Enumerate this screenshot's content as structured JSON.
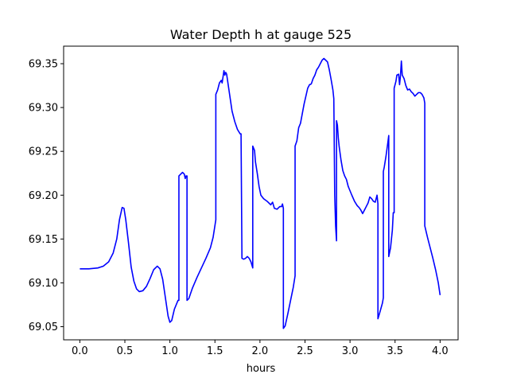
{
  "chart_data": {
    "type": "line",
    "title": "Water Depth h at gauge 525",
    "xlabel": "hours",
    "ylabel": "",
    "xlim": [
      -0.18,
      4.2
    ],
    "ylim": [
      69.035,
      69.37
    ],
    "xticks": [
      0.0,
      0.5,
      1.0,
      1.5,
      2.0,
      2.5,
      3.0,
      3.5,
      4.0
    ],
    "xtick_labels": [
      "0.0",
      "0.5",
      "1.0",
      "1.5",
      "2.0",
      "2.5",
      "3.0",
      "3.5",
      "4.0"
    ],
    "yticks": [
      69.05,
      69.1,
      69.15,
      69.2,
      69.25,
      69.3,
      69.35
    ],
    "ytick_labels": [
      "69.05",
      "69.10",
      "69.15",
      "69.20",
      "69.25",
      "69.30",
      "69.35"
    ],
    "grid": false,
    "legend": "none",
    "series": [
      {
        "color": "#0000ff",
        "points": [
          [
            0.0,
            69.116
          ],
          [
            0.1,
            69.116
          ],
          [
            0.2,
            69.117
          ],
          [
            0.26,
            69.119
          ],
          [
            0.32,
            69.124
          ],
          [
            0.37,
            69.134
          ],
          [
            0.41,
            69.15
          ],
          [
            0.44,
            69.172
          ],
          [
            0.47,
            69.186
          ],
          [
            0.49,
            69.185
          ],
          [
            0.51,
            69.172
          ],
          [
            0.54,
            69.146
          ],
          [
            0.57,
            69.118
          ],
          [
            0.6,
            69.102
          ],
          [
            0.63,
            69.093
          ],
          [
            0.66,
            69.09
          ],
          [
            0.7,
            69.091
          ],
          [
            0.74,
            69.096
          ],
          [
            0.78,
            69.105
          ],
          [
            0.82,
            69.115
          ],
          [
            0.86,
            69.119
          ],
          [
            0.89,
            69.116
          ],
          [
            0.92,
            69.104
          ],
          [
            0.95,
            69.083
          ],
          [
            0.98,
            69.062
          ],
          [
            1.0,
            69.055
          ],
          [
            1.02,
            69.057
          ],
          [
            1.05,
            69.07
          ],
          [
            1.09,
            69.08
          ],
          [
            1.1,
            69.08
          ],
          [
            1.1,
            69.222
          ],
          [
            1.12,
            69.224
          ],
          [
            1.14,
            69.226
          ],
          [
            1.16,
            69.224
          ],
          [
            1.17,
            69.219
          ],
          [
            1.18,
            69.222
          ],
          [
            1.19,
            69.222
          ],
          [
            1.19,
            69.08
          ],
          [
            1.21,
            69.082
          ],
          [
            1.25,
            69.094
          ],
          [
            1.3,
            69.106
          ],
          [
            1.35,
            69.117
          ],
          [
            1.4,
            69.128
          ],
          [
            1.45,
            69.14
          ],
          [
            1.48,
            69.152
          ],
          [
            1.51,
            69.172
          ],
          [
            1.51,
            69.315
          ],
          [
            1.53,
            69.32
          ],
          [
            1.55,
            69.328
          ],
          [
            1.57,
            69.331
          ],
          [
            1.58,
            69.328
          ],
          [
            1.6,
            69.342
          ],
          [
            1.61,
            69.337
          ],
          [
            1.62,
            69.34
          ],
          [
            1.63,
            69.338
          ],
          [
            1.65,
            69.324
          ],
          [
            1.67,
            69.31
          ],
          [
            1.69,
            69.296
          ],
          [
            1.72,
            69.284
          ],
          [
            1.75,
            69.275
          ],
          [
            1.78,
            69.27
          ],
          [
            1.79,
            69.27
          ],
          [
            1.8,
            69.128
          ],
          [
            1.82,
            69.127
          ],
          [
            1.84,
            69.128
          ],
          [
            1.86,
            69.13
          ],
          [
            1.88,
            69.128
          ],
          [
            1.9,
            69.124
          ],
          [
            1.92,
            69.117
          ],
          [
            1.92,
            69.256
          ],
          [
            1.94,
            69.251
          ],
          [
            1.95,
            69.238
          ],
          [
            1.97,
            69.225
          ],
          [
            1.99,
            69.21
          ],
          [
            2.01,
            69.2
          ],
          [
            2.04,
            69.196
          ],
          [
            2.08,
            69.193
          ],
          [
            2.12,
            69.189
          ],
          [
            2.14,
            69.192
          ],
          [
            2.16,
            69.185
          ],
          [
            2.19,
            69.184
          ],
          [
            2.22,
            69.187
          ],
          [
            2.24,
            69.187
          ],
          [
            2.25,
            69.19
          ],
          [
            2.26,
            69.185
          ],
          [
            2.26,
            69.048
          ],
          [
            2.28,
            69.051
          ],
          [
            2.31,
            69.065
          ],
          [
            2.34,
            69.08
          ],
          [
            2.37,
            69.095
          ],
          [
            2.39,
            69.108
          ],
          [
            2.39,
            69.256
          ],
          [
            2.41,
            69.262
          ],
          [
            2.43,
            69.277
          ],
          [
            2.45,
            69.282
          ],
          [
            2.47,
            69.293
          ],
          [
            2.49,
            69.304
          ],
          [
            2.51,
            69.313
          ],
          [
            2.53,
            69.322
          ],
          [
            2.55,
            69.326
          ],
          [
            2.57,
            69.327
          ],
          [
            2.59,
            69.333
          ],
          [
            2.61,
            69.337
          ],
          [
            2.63,
            69.343
          ],
          [
            2.65,
            69.346
          ],
          [
            2.67,
            69.35
          ],
          [
            2.69,
            69.354
          ],
          [
            2.71,
            69.356
          ],
          [
            2.73,
            69.354
          ],
          [
            2.75,
            69.352
          ],
          [
            2.77,
            69.343
          ],
          [
            2.79,
            69.332
          ],
          [
            2.81,
            69.32
          ],
          [
            2.82,
            69.31
          ],
          [
            2.83,
            69.2
          ],
          [
            2.84,
            69.165
          ],
          [
            2.85,
            69.148
          ],
          [
            2.85,
            69.285
          ],
          [
            2.86,
            69.28
          ],
          [
            2.87,
            69.265
          ],
          [
            2.88,
            69.255
          ],
          [
            2.9,
            69.24
          ],
          [
            2.92,
            69.228
          ],
          [
            2.94,
            69.222
          ],
          [
            2.96,
            69.218
          ],
          [
            2.98,
            69.21
          ],
          [
            3.0,
            69.205
          ],
          [
            3.02,
            69.2
          ],
          [
            3.05,
            69.193
          ],
          [
            3.08,
            69.188
          ],
          [
            3.1,
            69.186
          ],
          [
            3.12,
            69.183
          ],
          [
            3.14,
            69.179
          ],
          [
            3.16,
            69.183
          ],
          [
            3.18,
            69.187
          ],
          [
            3.2,
            69.191
          ],
          [
            3.22,
            69.198
          ],
          [
            3.24,
            69.196
          ],
          [
            3.26,
            69.193
          ],
          [
            3.28,
            69.192
          ],
          [
            3.3,
            69.2
          ],
          [
            3.31,
            69.19
          ],
          [
            3.31,
            69.059
          ],
          [
            3.33,
            69.066
          ],
          [
            3.36,
            69.077
          ],
          [
            3.37,
            69.083
          ],
          [
            3.37,
            69.227
          ],
          [
            3.38,
            69.232
          ],
          [
            3.4,
            69.245
          ],
          [
            3.42,
            69.26
          ],
          [
            3.43,
            69.268
          ],
          [
            3.43,
            69.13
          ],
          [
            3.45,
            69.14
          ],
          [
            3.47,
            69.16
          ],
          [
            3.48,
            69.18
          ],
          [
            3.49,
            69.18
          ],
          [
            3.49,
            69.322
          ],
          [
            3.51,
            69.33
          ],
          [
            3.52,
            69.337
          ],
          [
            3.54,
            69.338
          ],
          [
            3.55,
            69.326
          ],
          [
            3.56,
            69.336
          ],
          [
            3.57,
            69.353
          ],
          [
            3.58,
            69.337
          ],
          [
            3.6,
            69.333
          ],
          [
            3.62,
            69.325
          ],
          [
            3.64,
            69.32
          ],
          [
            3.66,
            69.321
          ],
          [
            3.68,
            69.318
          ],
          [
            3.7,
            69.316
          ],
          [
            3.72,
            69.313
          ],
          [
            3.74,
            69.315
          ],
          [
            3.76,
            69.317
          ],
          [
            3.78,
            69.317
          ],
          [
            3.8,
            69.315
          ],
          [
            3.82,
            69.311
          ],
          [
            3.83,
            69.305
          ],
          [
            3.83,
            69.165
          ],
          [
            3.86,
            69.152
          ],
          [
            3.89,
            69.14
          ],
          [
            3.92,
            69.128
          ],
          [
            3.95,
            69.115
          ],
          [
            3.98,
            69.1
          ],
          [
            4.0,
            69.086
          ]
        ]
      }
    ]
  }
}
